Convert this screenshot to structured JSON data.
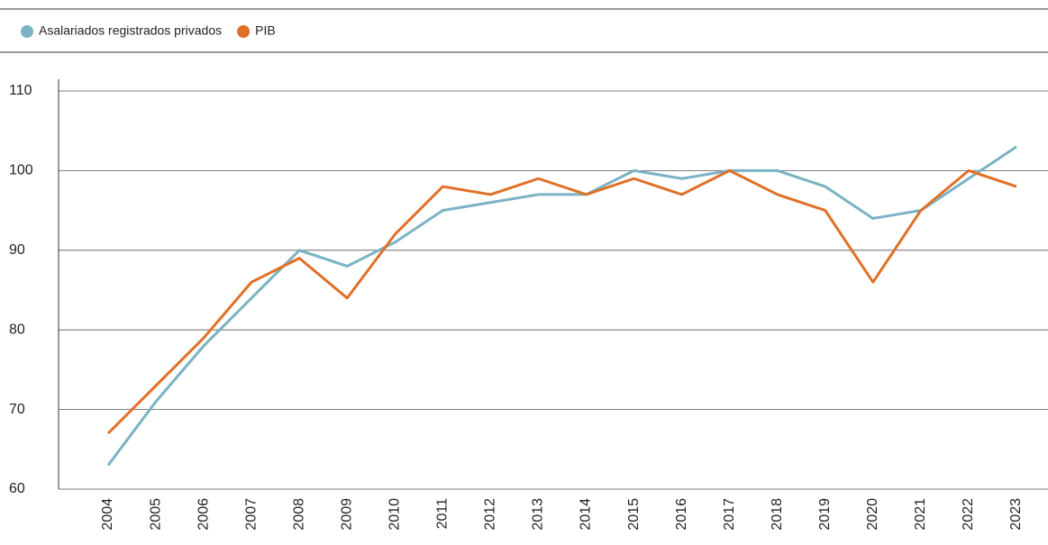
{
  "chart_data": {
    "type": "line",
    "categories": [
      "2004",
      "2005",
      "2006",
      "2007",
      "2008",
      "2009",
      "2010",
      "2011",
      "2012",
      "2013",
      "2014",
      "2015",
      "2016",
      "2017",
      "2018",
      "2019",
      "2020",
      "2021",
      "2022",
      "2023"
    ],
    "series": [
      {
        "name": "Asalariados registrados privados",
        "color": "#7ab3c3",
        "values": [
          63,
          71,
          78,
          84,
          90,
          88,
          91,
          95,
          96,
          97,
          97,
          100,
          99,
          100,
          100,
          98,
          94,
          95,
          99,
          103
        ]
      },
      {
        "name": "PIB",
        "color": "#e07027",
        "values": [
          67,
          73,
          79,
          86,
          89,
          84,
          92,
          98,
          97,
          99,
          97,
          99,
          97,
          100,
          97,
          95,
          86,
          95,
          100,
          98
        ]
      }
    ],
    "ylim": [
      60,
      110
    ],
    "yticks": [
      60,
      70,
      80,
      90,
      100,
      110
    ],
    "grid": true
  }
}
